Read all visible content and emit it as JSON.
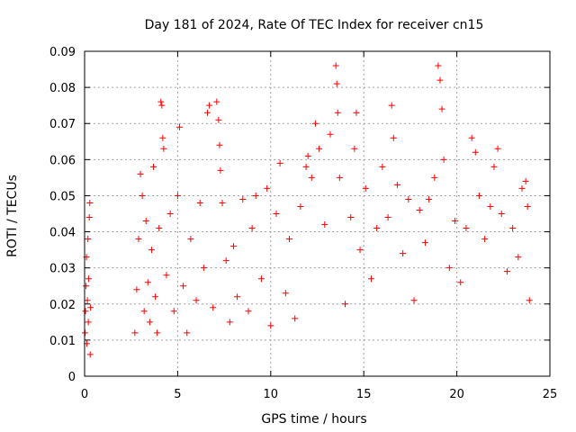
{
  "chart_data": {
    "type": "scatter",
    "title": "Day 181 of 2024, Rate Of TEC Index for receiver cn15",
    "xlabel": "GPS time / hours",
    "ylabel": "ROTI / TECUs",
    "xlim": [
      0,
      25
    ],
    "ylim": [
      0,
      0.09
    ],
    "xticks": [
      0,
      5,
      10,
      15,
      20,
      25
    ],
    "yticks": [
      0,
      0.01,
      0.02,
      0.03,
      0.04,
      0.05,
      0.06,
      0.07,
      0.08,
      0.09
    ],
    "xtick_labels": [
      "0",
      "5",
      "10",
      "15",
      "20",
      "25"
    ],
    "ytick_labels": [
      "0",
      "0.01",
      "0.02",
      "0.03",
      "0.04",
      "0.05",
      "0.06",
      "0.07",
      "0.08",
      "0.09"
    ],
    "grid": true,
    "marker": "+",
    "color": "#ff0000",
    "series": [
      {
        "name": "ROTI",
        "points": [
          [
            0.02,
            0.012
          ],
          [
            0.05,
            0.018
          ],
          [
            0.08,
            0.025
          ],
          [
            0.1,
            0.033
          ],
          [
            0.12,
            0.009
          ],
          [
            0.15,
            0.021
          ],
          [
            0.18,
            0.038
          ],
          [
            0.2,
            0.015
          ],
          [
            0.22,
            0.027
          ],
          [
            0.25,
            0.044
          ],
          [
            0.28,
            0.048
          ],
          [
            0.3,
            0.006
          ],
          [
            0.32,
            0.019
          ],
          [
            2.7,
            0.012
          ],
          [
            2.8,
            0.024
          ],
          [
            2.9,
            0.038
          ],
          [
            3.0,
            0.056
          ],
          [
            3.1,
            0.05
          ],
          [
            3.2,
            0.018
          ],
          [
            3.3,
            0.043
          ],
          [
            3.4,
            0.026
          ],
          [
            3.5,
            0.015
          ],
          [
            3.6,
            0.035
          ],
          [
            3.7,
            0.058
          ],
          [
            3.8,
            0.022
          ],
          [
            3.9,
            0.012
          ],
          [
            4.0,
            0.041
          ],
          [
            4.1,
            0.076
          ],
          [
            4.15,
            0.075
          ],
          [
            4.2,
            0.066
          ],
          [
            4.25,
            0.063
          ],
          [
            4.4,
            0.028
          ],
          [
            4.6,
            0.045
          ],
          [
            4.8,
            0.018
          ],
          [
            5.0,
            0.05
          ],
          [
            5.1,
            0.069
          ],
          [
            5.3,
            0.025
          ],
          [
            5.5,
            0.012
          ],
          [
            5.7,
            0.038
          ],
          [
            6.0,
            0.021
          ],
          [
            6.2,
            0.048
          ],
          [
            6.4,
            0.03
          ],
          [
            6.6,
            0.073
          ],
          [
            6.7,
            0.075
          ],
          [
            6.9,
            0.019
          ],
          [
            7.1,
            0.076
          ],
          [
            7.2,
            0.071
          ],
          [
            7.25,
            0.064
          ],
          [
            7.3,
            0.057
          ],
          [
            7.4,
            0.048
          ],
          [
            7.6,
            0.032
          ],
          [
            7.8,
            0.015
          ],
          [
            8.0,
            0.036
          ],
          [
            8.2,
            0.022
          ],
          [
            8.5,
            0.049
          ],
          [
            8.8,
            0.018
          ],
          [
            9.0,
            0.041
          ],
          [
            9.2,
            0.05
          ],
          [
            9.5,
            0.027
          ],
          [
            9.8,
            0.052
          ],
          [
            10.0,
            0.014
          ],
          [
            10.3,
            0.045
          ],
          [
            10.5,
            0.059
          ],
          [
            10.8,
            0.023
          ],
          [
            11.0,
            0.038
          ],
          [
            11.3,
            0.016
          ],
          [
            11.6,
            0.047
          ],
          [
            11.9,
            0.058
          ],
          [
            12.0,
            0.061
          ],
          [
            12.2,
            0.055
          ],
          [
            12.4,
            0.07
          ],
          [
            12.6,
            0.063
          ],
          [
            12.9,
            0.042
          ],
          [
            13.2,
            0.067
          ],
          [
            13.5,
            0.086
          ],
          [
            13.55,
            0.081
          ],
          [
            13.6,
            0.073
          ],
          [
            13.7,
            0.055
          ],
          [
            14.0,
            0.02
          ],
          [
            14.3,
            0.044
          ],
          [
            14.5,
            0.063
          ],
          [
            14.6,
            0.073
          ],
          [
            14.8,
            0.035
          ],
          [
            15.1,
            0.052
          ],
          [
            15.4,
            0.027
          ],
          [
            15.7,
            0.041
          ],
          [
            16.0,
            0.058
          ],
          [
            16.3,
            0.044
          ],
          [
            16.5,
            0.075
          ],
          [
            16.6,
            0.066
          ],
          [
            16.8,
            0.053
          ],
          [
            17.1,
            0.034
          ],
          [
            17.4,
            0.049
          ],
          [
            17.7,
            0.021
          ],
          [
            18.0,
            0.046
          ],
          [
            18.3,
            0.037
          ],
          [
            18.5,
            0.049
          ],
          [
            18.8,
            0.055
          ],
          [
            19.0,
            0.086
          ],
          [
            19.1,
            0.082
          ],
          [
            19.2,
            0.074
          ],
          [
            19.3,
            0.06
          ],
          [
            19.6,
            0.03
          ],
          [
            19.9,
            0.043
          ],
          [
            20.2,
            0.026
          ],
          [
            20.5,
            0.041
          ],
          [
            20.8,
            0.066
          ],
          [
            21.0,
            0.062
          ],
          [
            21.2,
            0.05
          ],
          [
            21.5,
            0.038
          ],
          [
            21.8,
            0.047
          ],
          [
            22.0,
            0.058
          ],
          [
            22.2,
            0.063
          ],
          [
            22.4,
            0.045
          ],
          [
            22.7,
            0.029
          ],
          [
            23.0,
            0.041
          ],
          [
            23.3,
            0.033
          ],
          [
            23.5,
            0.052
          ],
          [
            23.7,
            0.054
          ],
          [
            23.8,
            0.047
          ],
          [
            23.9,
            0.021
          ]
        ]
      }
    ]
  }
}
